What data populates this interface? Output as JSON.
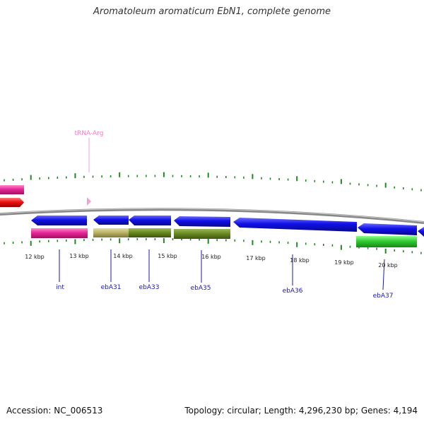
{
  "title": "Aromatoleum aromaticum EbN1, complete genome",
  "footer": {
    "accession": "Accession: NC_006513",
    "summary": "Topology: circular; Length: 4,296,230 bp; Genes: 4,194"
  },
  "colors": {
    "backbone": "#888888",
    "ticks": "#228822",
    "gene_blue": "#1010e8",
    "gene_pink": "#e8269a",
    "gene_red": "#ee1111",
    "gene_khaki": "#bdb56b",
    "gene_olive": "#6b8b23",
    "gene_green": "#33cc33",
    "trna": "#f5a0d0",
    "gene_label": "#1a1aa8"
  },
  "ruler": {
    "labels": [
      "12 kbp",
      "13 kbp",
      "14 kbp",
      "15 kbp",
      "16 kbp",
      "17 kbp",
      "18 kbp",
      "19 kbp",
      "20 kbp"
    ]
  },
  "features": {
    "trna": {
      "label": "tRNA-Arg"
    },
    "gene_labels": [
      "int",
      "ebA31",
      "ebA33",
      "ebA35",
      "ebA36",
      "ebA37"
    ]
  }
}
